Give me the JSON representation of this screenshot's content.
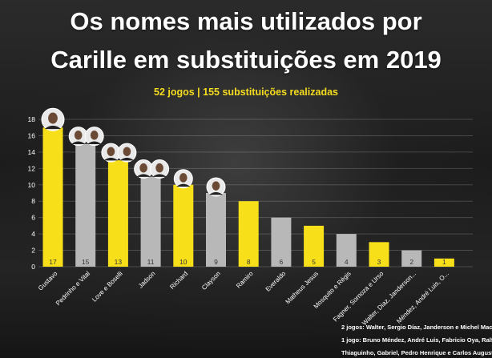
{
  "header": {
    "title_line1": "Os nomes mais utilizados por",
    "title_line2": "Carille em substituições em 2019",
    "subtitle": "52 jogos | 155 substituições realizadas"
  },
  "colors": {
    "yellow": "#f7e01a",
    "gray": "#b8b8b8",
    "accent_text": "#f5dc1e"
  },
  "chart_data": {
    "type": "bar",
    "ylim": [
      0,
      18
    ],
    "yticks": [
      0,
      2,
      4,
      6,
      8,
      10,
      12,
      14,
      16,
      18
    ],
    "grid": true,
    "categories": [
      "Gustavo",
      "Pedrinho e Vital",
      "Love e Boselli",
      "Jadson",
      "Richard",
      "Clayson",
      "Ramiro",
      "Everaldo",
      "Matheus Jesus",
      "Mosquito e Régis",
      "Fagner, Sornoza e Urso",
      "Walter, Diaz, Janderson...",
      "Méndez, André Luis, O..."
    ],
    "values": [
      17,
      15,
      13,
      11,
      10,
      9,
      8,
      6,
      5,
      4,
      3,
      2,
      1
    ],
    "bar_colors": [
      "yellow",
      "gray",
      "yellow",
      "gray",
      "yellow",
      "gray",
      "yellow",
      "gray",
      "yellow",
      "gray",
      "yellow",
      "gray",
      "yellow"
    ],
    "player_photos": [
      1,
      2,
      2,
      2,
      1,
      1,
      0,
      0,
      0,
      0,
      0,
      0,
      0
    ]
  },
  "footnotes": [
    "2 jogos: Walter, Sergio Díaz, Janderson e Michel Macedo;",
    "1 jogo: Bruno Méndez, André Luis, Fabricio Oya, Ralf,",
    "Thiaguinho, Gabriel, Pedro Henrique e Carlos Augusto;"
  ]
}
